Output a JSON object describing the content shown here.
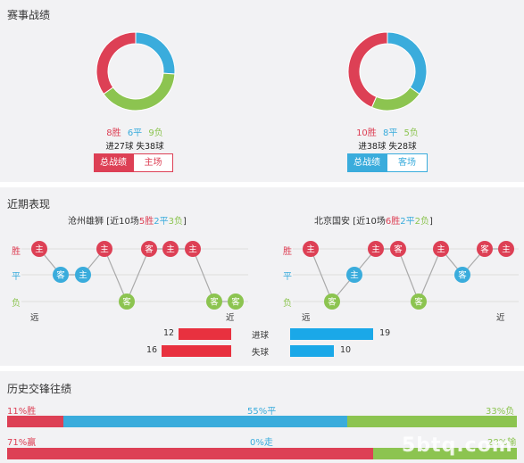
{
  "colors": {
    "win": "#dd4055",
    "draw": "#3aacdc",
    "loss": "#8cc450",
    "line": "#aaaaaa",
    "red_bar": "#e8313f",
    "blue_bar": "#1aa8e8"
  },
  "section1": {
    "title": "赛事战绩",
    "left": {
      "win": 8,
      "draw": 6,
      "loss": 9,
      "win_text": "8胜",
      "draw_text": "6平",
      "loss_text": "9负",
      "goals_text": "进27球  失38球",
      "btn_total": "总战绩",
      "btn_side": "主场"
    },
    "right": {
      "win": 10,
      "draw": 8,
      "loss": 5,
      "win_text": "10胜",
      "draw_text": "8平",
      "loss_text": "5负",
      "goals_text": "进38球  失28球",
      "btn_total": "总战绩",
      "btn_side": "客场"
    }
  },
  "section2": {
    "title": "近期表现",
    "row_labels": {
      "win": "胜",
      "draw": "平",
      "loss": "负"
    },
    "far": "远",
    "near": "近",
    "left": {
      "team": "沧州雄狮",
      "summary_pre": "[近10场",
      "w": "5胜",
      "d": "2平",
      "l": "3负",
      "summary_post": "]",
      "results": [
        "W",
        "D",
        "D",
        "W",
        "L",
        "W",
        "W",
        "W",
        "L",
        "L"
      ],
      "venues": [
        "主",
        "客",
        "主",
        "主",
        "客",
        "客",
        "主",
        "主",
        "客",
        "客"
      ]
    },
    "right": {
      "team": "北京国安",
      "summary_pre": "[近10场",
      "w": "6胜",
      "d": "2平",
      "l": "2负",
      "summary_post": "]",
      "results": [
        "W",
        "L",
        "D",
        "W",
        "W",
        "L",
        "W",
        "D",
        "W",
        "W"
      ],
      "venues": [
        "主",
        "客",
        "主",
        "主",
        "客",
        "客",
        "主",
        "客",
        "客",
        "主"
      ]
    },
    "goals_for": {
      "label": "进球",
      "left": 12,
      "right": 19
    },
    "goals_against": {
      "label": "失球",
      "left": 16,
      "right": 10
    }
  },
  "section3": {
    "title": "历史交锋往绩",
    "row1": {
      "left_text": "11%胜",
      "mid_text": "55%平",
      "right_text": "33%负",
      "win": 11,
      "draw": 55,
      "loss": 33
    },
    "row2": {
      "left_text": "71%赢",
      "mid_text": "0%走",
      "right_text": "28%输",
      "win": 71,
      "draw": 0,
      "loss": 28
    }
  },
  "watermark": "5btq.com"
}
